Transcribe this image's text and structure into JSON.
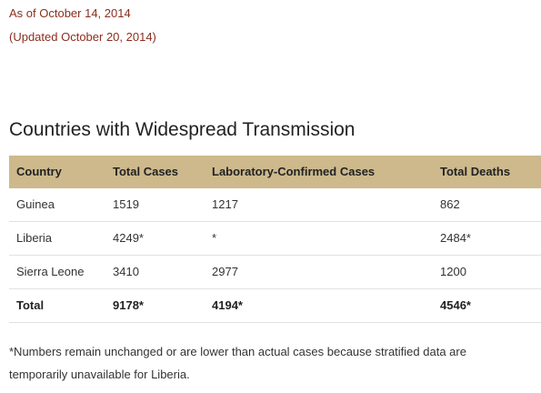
{
  "header": {
    "as_of": "As of October 14, 2014",
    "updated": "(Updated October 20, 2014)"
  },
  "section_title": "Countries with Widespread Transmission",
  "table": {
    "columns": [
      "Country",
      "Total Cases",
      "Laboratory-Confirmed Cases",
      "Total Deaths"
    ],
    "rows": [
      [
        "Guinea",
        "1519",
        "1217",
        "862"
      ],
      [
        "Liberia",
        "4249*",
        "*",
        "2484*"
      ],
      [
        "Sierra Leone",
        "3410",
        "2977",
        "1200"
      ]
    ],
    "total": [
      "Total",
      "9178*",
      "4194*",
      "4546*"
    ]
  },
  "footnote": "*Numbers remain unchanged or are lower than actual cases because stratified data are temporarily unavailable for Liberia."
}
